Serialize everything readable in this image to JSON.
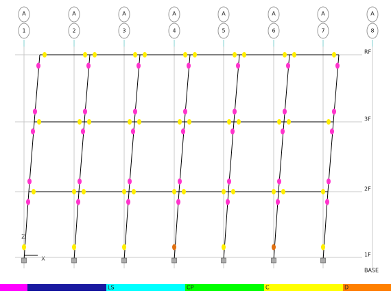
{
  "grid_bubbles": [
    {
      "row": "A",
      "number": "1"
    },
    {
      "row": "A",
      "number": "2"
    },
    {
      "row": "A",
      "number": "3"
    },
    {
      "row": "A",
      "number": "4"
    },
    {
      "row": "A",
      "number": "5"
    },
    {
      "row": "A",
      "number": "6"
    },
    {
      "row": "A",
      "number": "7"
    },
    {
      "row": "A",
      "number": "8"
    }
  ],
  "stories": [
    "RF",
    "3F",
    "2F",
    "1F",
    "BASE"
  ],
  "axes": {
    "vertical": "Z",
    "horizontal": "X"
  },
  "legend": [
    "LS",
    "CP",
    "C",
    "D"
  ]
}
